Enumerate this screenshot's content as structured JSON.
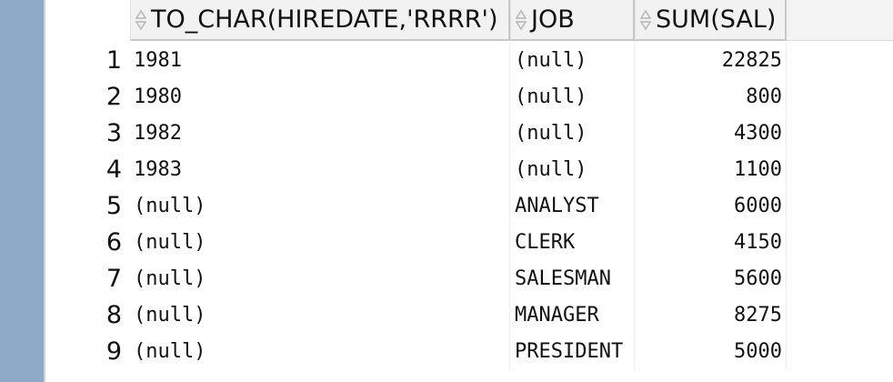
{
  "grid": {
    "columns": [
      {
        "label": "TO_CHAR(HIREDATE,'RRRR')",
        "icon": "sort-icon"
      },
      {
        "label": "JOB",
        "icon": "sort-icon"
      },
      {
        "label": "SUM(SAL)",
        "icon": "sort-icon"
      }
    ],
    "rows": [
      {
        "num": "1",
        "year": "1981",
        "job": "(null)",
        "sum": "22825"
      },
      {
        "num": "2",
        "year": "1980",
        "job": "(null)",
        "sum": "800"
      },
      {
        "num": "3",
        "year": "1982",
        "job": "(null)",
        "sum": "4300"
      },
      {
        "num": "4",
        "year": "1983",
        "job": "(null)",
        "sum": "1100"
      },
      {
        "num": "5",
        "year": "(null)",
        "job": "ANALYST",
        "sum": "6000"
      },
      {
        "num": "6",
        "year": "(null)",
        "job": "CLERK",
        "sum": "4150"
      },
      {
        "num": "7",
        "year": "(null)",
        "job": "SALESMAN",
        "sum": "5600"
      },
      {
        "num": "8",
        "year": "(null)",
        "job": "MANAGER",
        "sum": "8275"
      },
      {
        "num": "9",
        "year": "(null)",
        "job": "PRESIDENT",
        "sum": "5000"
      }
    ]
  },
  "colors": {
    "left_rail": "#8fa9c8",
    "header_bg": "#f2f2f2",
    "cell_text": "#111111"
  }
}
